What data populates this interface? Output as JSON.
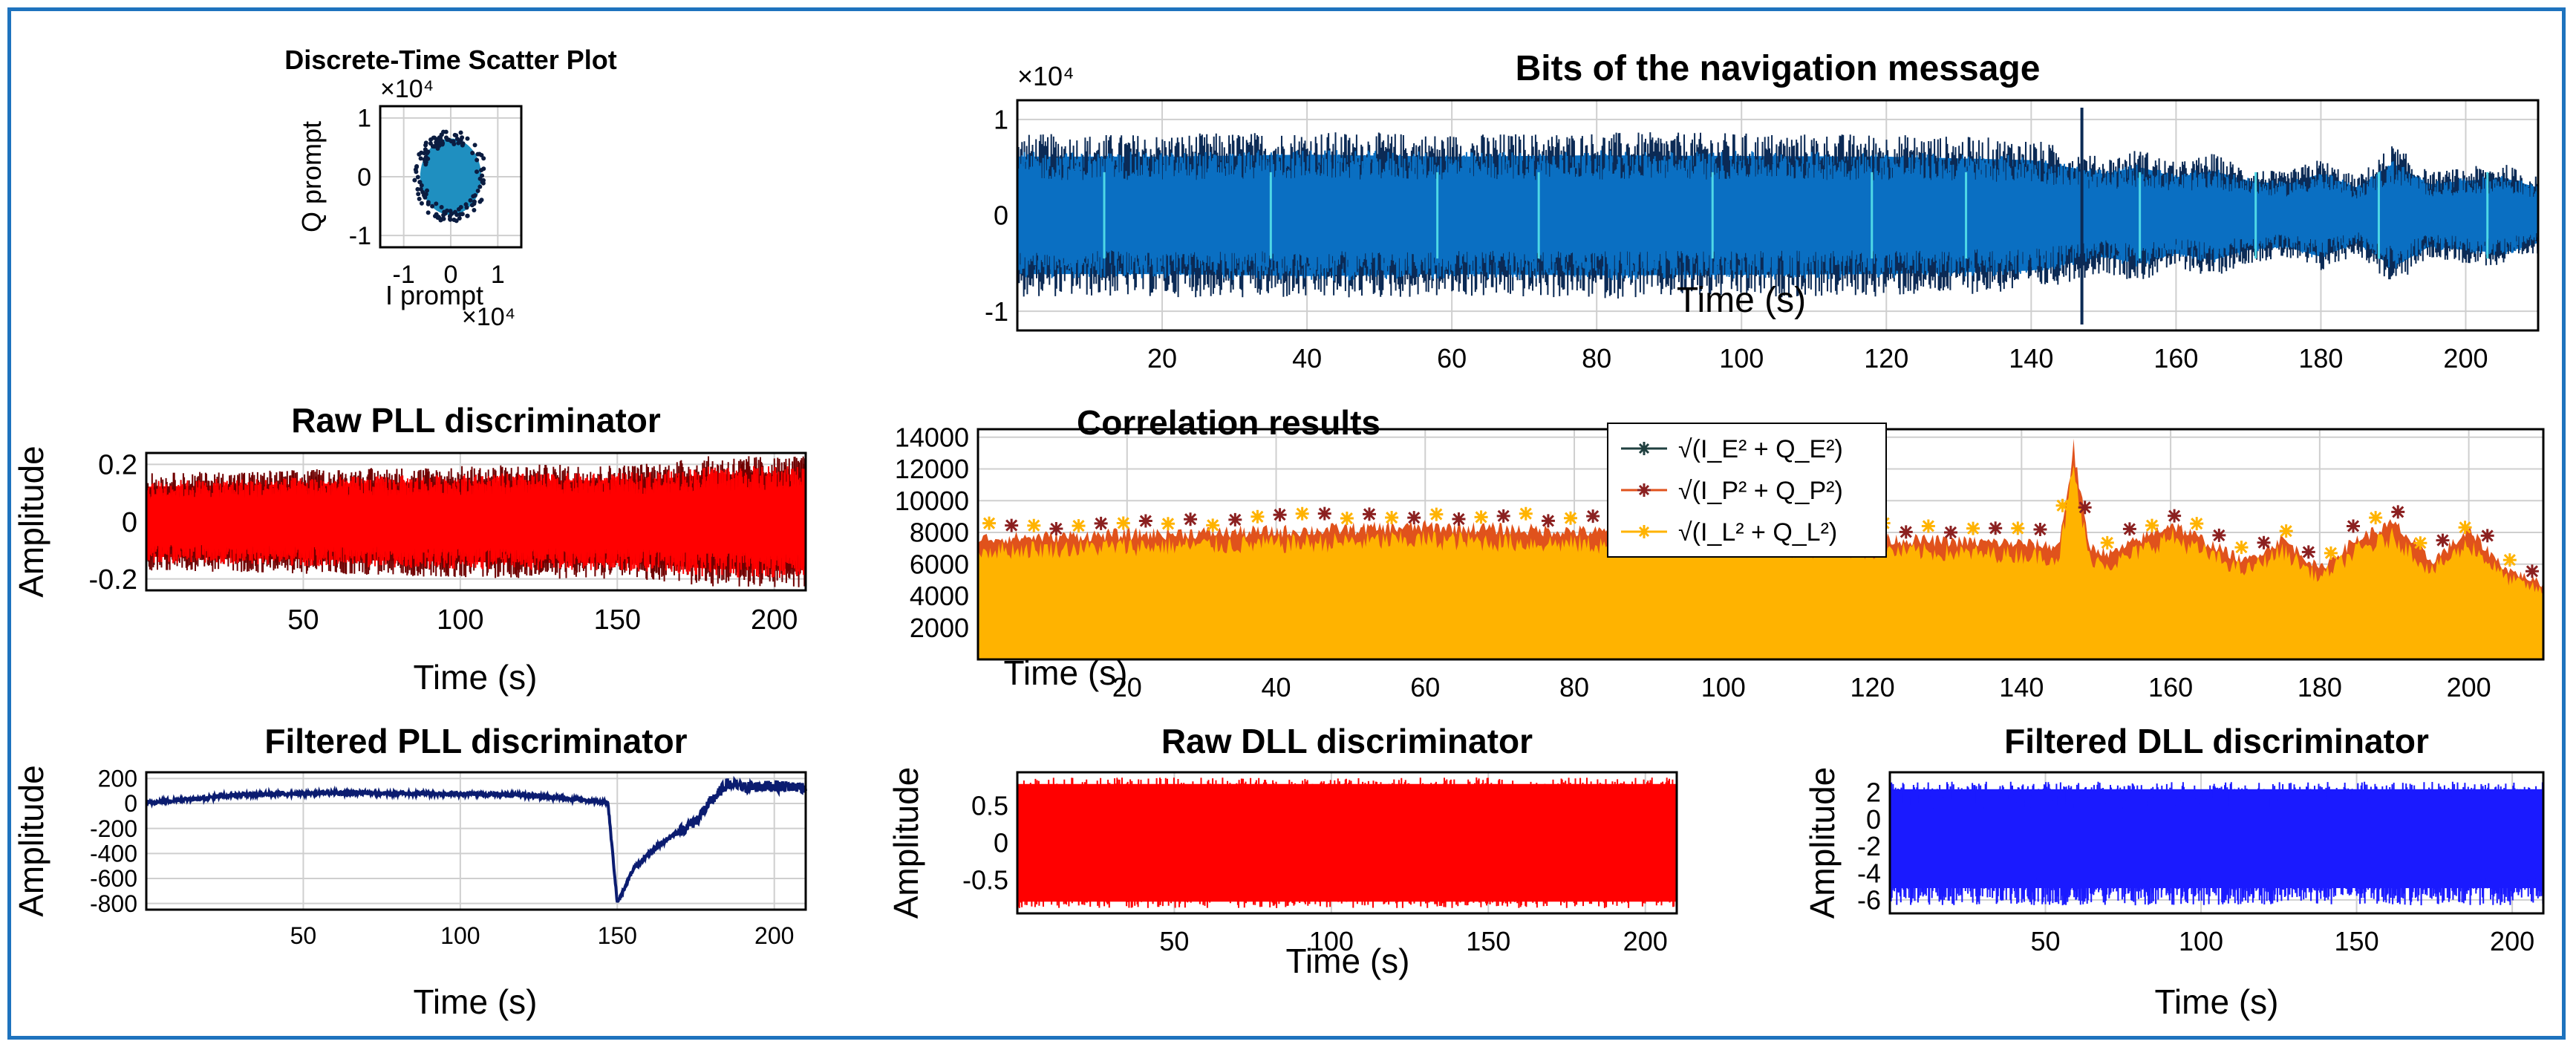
{
  "colors": {
    "frame": "#1e73be",
    "nav": "#0a6fc2",
    "navEdge": "#0b2a55",
    "navSpike": "#4fd8e6",
    "red": "#ff0000",
    "redEdge": "#700000",
    "darkBlue": "#0b1c70",
    "blue": "#1a1aff",
    "early": "#204040",
    "prompt": "#e0521c",
    "promptMarker": "#8b2020",
    "late": "#ffb300"
  },
  "chart_data": [
    {
      "id": "scatter",
      "type": "scatter",
      "title": "Discrete-Time Scatter Plot",
      "xlabel": "I prompt",
      "ylabel": "Q prompt",
      "xlim": [
        -1.5,
        1.5
      ],
      "ylim": [
        -1.2,
        1.2
      ],
      "xticks": [
        -1,
        0,
        1
      ],
      "xtick_labels": [
        "-1",
        "0",
        "1"
      ],
      "yticks": [
        1,
        0,
        -1
      ],
      "ytick_labels": [
        "1",
        "0",
        "-1"
      ],
      "x_multiplier": "×10⁴",
      "y_multiplier": "×10⁴",
      "cluster": {
        "center": [
          0,
          0
        ],
        "radius_x": 0.65,
        "radius_y": 0.65
      }
    },
    {
      "id": "nav",
      "type": "line",
      "title": "Bits of the navigation message",
      "xlabel": "Time (s)",
      "ylabel": "",
      "xlim": [
        0,
        210
      ],
      "ylim": [
        -1.2,
        1.2
      ],
      "xticks": [
        20,
        40,
        60,
        80,
        100,
        120,
        140,
        160,
        180,
        200
      ],
      "xtick_labels": [
        "20",
        "40",
        "60",
        "80",
        "100",
        "120",
        "140",
        "160",
        "180",
        "200"
      ],
      "yticks": [
        1,
        0,
        -1
      ],
      "ytick_labels": [
        "1",
        "0",
        "-1"
      ],
      "y_multiplier": "×10⁴",
      "envelope": {
        "t": [
          0,
          20,
          40,
          60,
          80,
          100,
          120,
          140,
          145,
          150,
          155,
          160,
          165,
          170,
          175,
          180,
          185,
          190,
          195,
          200,
          205,
          210
        ],
        "amp": [
          0.85,
          0.85,
          0.88,
          0.85,
          0.87,
          0.86,
          0.85,
          0.8,
          0.7,
          0.6,
          0.7,
          0.55,
          0.65,
          0.5,
          0.45,
          0.6,
          0.4,
          0.75,
          0.45,
          0.5,
          0.55,
          0.4
        ]
      }
    },
    {
      "id": "rawpll",
      "type": "line",
      "title": "Raw PLL discriminator",
      "xlabel": "Time (s)",
      "ylabel": "Amplitude",
      "xlim": [
        0,
        210
      ],
      "ylim": [
        -0.24,
        0.24
      ],
      "xticks": [
        50,
        100,
        150,
        200
      ],
      "xtick_labels": [
        "50",
        "100",
        "150",
        "200"
      ],
      "yticks": [
        0.2,
        0,
        -0.2
      ],
      "ytick_labels": [
        "0.2",
        "0",
        "-0.2"
      ],
      "envelope": {
        "t": [
          0,
          40,
          80,
          120,
          150,
          165,
          180,
          210
        ],
        "amp": [
          0.17,
          0.18,
          0.19,
          0.2,
          0.2,
          0.21,
          0.23,
          0.23
        ]
      }
    },
    {
      "id": "corr",
      "type": "line",
      "title": "Correlation results",
      "xlabel": "Time (s)",
      "ylabel": "",
      "xlim": [
        0,
        210
      ],
      "ylim": [
        0,
        14500
      ],
      "xticks": [
        20,
        40,
        60,
        80,
        100,
        120,
        140,
        160,
        180,
        200
      ],
      "xtick_labels": [
        "20",
        "40",
        "60",
        "80",
        "100",
        "120",
        "140",
        "160",
        "180",
        "200"
      ],
      "yticks": [
        14000,
        12000,
        10000,
        8000,
        6000,
        4000,
        2000
      ],
      "ytick_labels": [
        "14000",
        "12000",
        "10000",
        "8000",
        "6000",
        "4000",
        "2000"
      ],
      "legend_position": "top-center",
      "series": [
        {
          "name": "√(I_E² + Q_E²)",
          "color_key": "early"
        },
        {
          "name": "√(I_P² + Q_P²)",
          "color_key": "prompt"
        },
        {
          "name": "√(I_L² + Q_L²)",
          "color_key": "late"
        }
      ],
      "prompt_envelope": {
        "t": [
          0,
          20,
          40,
          60,
          80,
          100,
          120,
          140,
          145,
          147,
          149,
          152,
          160,
          170,
          175,
          180,
          185,
          190,
          195,
          200,
          205,
          210
        ],
        "v": [
          8000,
          8300,
          8500,
          8800,
          8500,
          8200,
          8000,
          7700,
          7500,
          14000,
          7500,
          7000,
          9000,
          6500,
          8000,
          6000,
          8000,
          9000,
          6500,
          8500,
          6000,
          5000
        ]
      }
    },
    {
      "id": "filtpll",
      "type": "line",
      "title": "Filtered PLL discriminator",
      "xlabel": "Time (s)",
      "ylabel": "Amplitude",
      "xlim": [
        0,
        210
      ],
      "ylim": [
        -850,
        250
      ],
      "xticks": [
        50,
        100,
        150,
        200
      ],
      "xtick_labels": [
        "50",
        "100",
        "150",
        "200"
      ],
      "yticks": [
        200,
        0,
        -200,
        -400,
        -600,
        -800
      ],
      "ytick_labels": [
        "200",
        "0",
        "-200",
        "-400",
        "-600",
        "-800"
      ],
      "curve": {
        "t": [
          0,
          30,
          60,
          90,
          120,
          147,
          150,
          155,
          160,
          165,
          170,
          175,
          180,
          185,
          190,
          200,
          210
        ],
        "v": [
          5,
          70,
          85,
          80,
          70,
          10,
          -800,
          -530,
          -400,
          -300,
          -220,
          -140,
          20,
          160,
          130,
          140,
          130
        ]
      }
    },
    {
      "id": "rawdll",
      "type": "line",
      "title": "Raw DLL discriminator",
      "xlabel": "Time (s)",
      "ylabel": "Amplitude",
      "xlim": [
        0,
        210
      ],
      "ylim": [
        -0.95,
        0.95
      ],
      "xticks": [
        50,
        100,
        150,
        200
      ],
      "xtick_labels": [
        "50",
        "100",
        "150",
        "200"
      ],
      "yticks": [
        0.5,
        0,
        -0.5
      ],
      "ytick_labels": [
        "0.5",
        "0",
        "-0.5"
      ],
      "envelope": {
        "t": [
          0,
          210
        ],
        "amp": [
          0.88,
          0.88
        ]
      }
    },
    {
      "id": "filtdll",
      "type": "line",
      "title": "Filtered DLL discriminator",
      "xlabel": "Time (s)",
      "ylabel": "Amplitude",
      "xlim": [
        0,
        210
      ],
      "ylim": [
        -7,
        3.5
      ],
      "xticks": [
        50,
        100,
        150,
        200
      ],
      "xtick_labels": [
        "50",
        "100",
        "150",
        "200"
      ],
      "yticks": [
        2,
        0,
        -2,
        -4,
        -6
      ],
      "ytick_labels": [
        "2",
        "0",
        "-2",
        "-4",
        "-6"
      ],
      "band": {
        "upper": 2.8,
        "lower": -6.4
      }
    }
  ]
}
